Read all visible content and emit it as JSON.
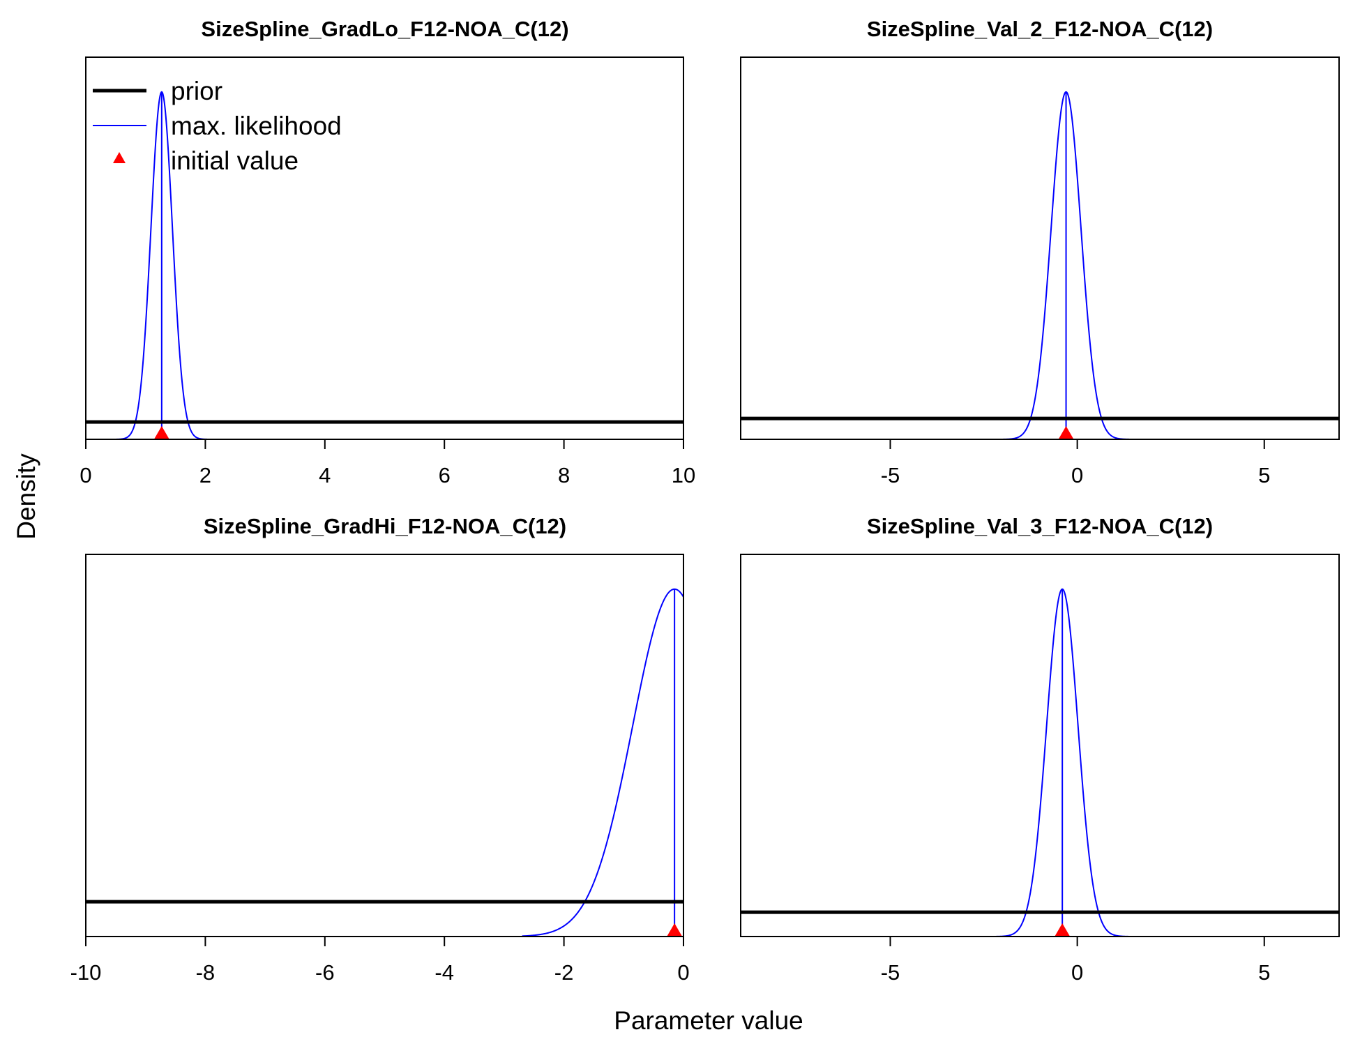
{
  "figure": {
    "ylabel": "Density",
    "xlabel": "Parameter value",
    "legend": {
      "placement": "top-left of first panel",
      "items": [
        {
          "label": "prior",
          "color": "#000000",
          "kind": "thick-line"
        },
        {
          "label": "max. likelihood",
          "color": "#0000FF",
          "kind": "thin-line"
        },
        {
          "label": "initial value",
          "color": "#FF0000",
          "kind": "triangle"
        }
      ]
    }
  },
  "chart_data": [
    {
      "type": "line",
      "title": "SizeSpline_GradLo_F12-NOA_C(12)",
      "xlim": [
        0,
        10
      ],
      "ylim": [
        0,
        1.1
      ],
      "xticks": [
        0,
        2,
        4,
        6,
        8,
        10
      ],
      "xtick_labels": [
        "0",
        "2",
        "4",
        "6",
        "8",
        "10"
      ],
      "prior_level": 0.05,
      "ml": {
        "mean": 1.27,
        "sd": 0.18,
        "peak": 1.0,
        "vline": 1.27
      },
      "initial_value": 1.27,
      "colors": {
        "prior": "#000000",
        "ml": "#0000FF",
        "initial": "#FF0000"
      }
    },
    {
      "type": "line",
      "title": "SizeSpline_Val_2_F12-NOA_C(12)",
      "xlim": [
        -9,
        7
      ],
      "ylim": [
        0,
        1.1
      ],
      "xticks": [
        -5,
        0,
        5
      ],
      "xtick_labels": [
        "-5",
        "0",
        "5"
      ],
      "prior_level": 0.06,
      "ml": {
        "mean": -0.3,
        "sd": 0.4,
        "peak": 1.0,
        "vline": -0.3
      },
      "initial_value": -0.3,
      "colors": {
        "prior": "#000000",
        "ml": "#0000FF",
        "initial": "#FF0000"
      }
    },
    {
      "type": "line",
      "title": "SizeSpline_GradHi_F12-NOA_C(12)",
      "xlim": [
        -10,
        0
      ],
      "ylim": [
        0,
        1.1
      ],
      "xticks": [
        -10,
        -8,
        -6,
        -4,
        -2,
        0
      ],
      "xtick_labels": [
        "-10",
        "-8",
        "-6",
        "-4",
        "-2",
        "0"
      ],
      "prior_level": 0.1,
      "ml": {
        "mean": -0.15,
        "sd": 0.7,
        "peak": 1.0,
        "vline": -0.15,
        "xmin": -2.7
      },
      "initial_value": -0.15,
      "colors": {
        "prior": "#000000",
        "ml": "#0000FF",
        "initial": "#FF0000"
      }
    },
    {
      "type": "line",
      "title": "SizeSpline_Val_3_F12-NOA_C(12)",
      "xlim": [
        -9,
        7
      ],
      "ylim": [
        0,
        1.1
      ],
      "xticks": [
        -5,
        0,
        5
      ],
      "xtick_labels": [
        "-5",
        "0",
        "5"
      ],
      "prior_level": 0.07,
      "ml": {
        "mean": -0.4,
        "sd": 0.42,
        "peak": 1.0,
        "vline": -0.4
      },
      "initial_value": -0.4,
      "colors": {
        "prior": "#000000",
        "ml": "#0000FF",
        "initial": "#FF0000"
      }
    }
  ]
}
